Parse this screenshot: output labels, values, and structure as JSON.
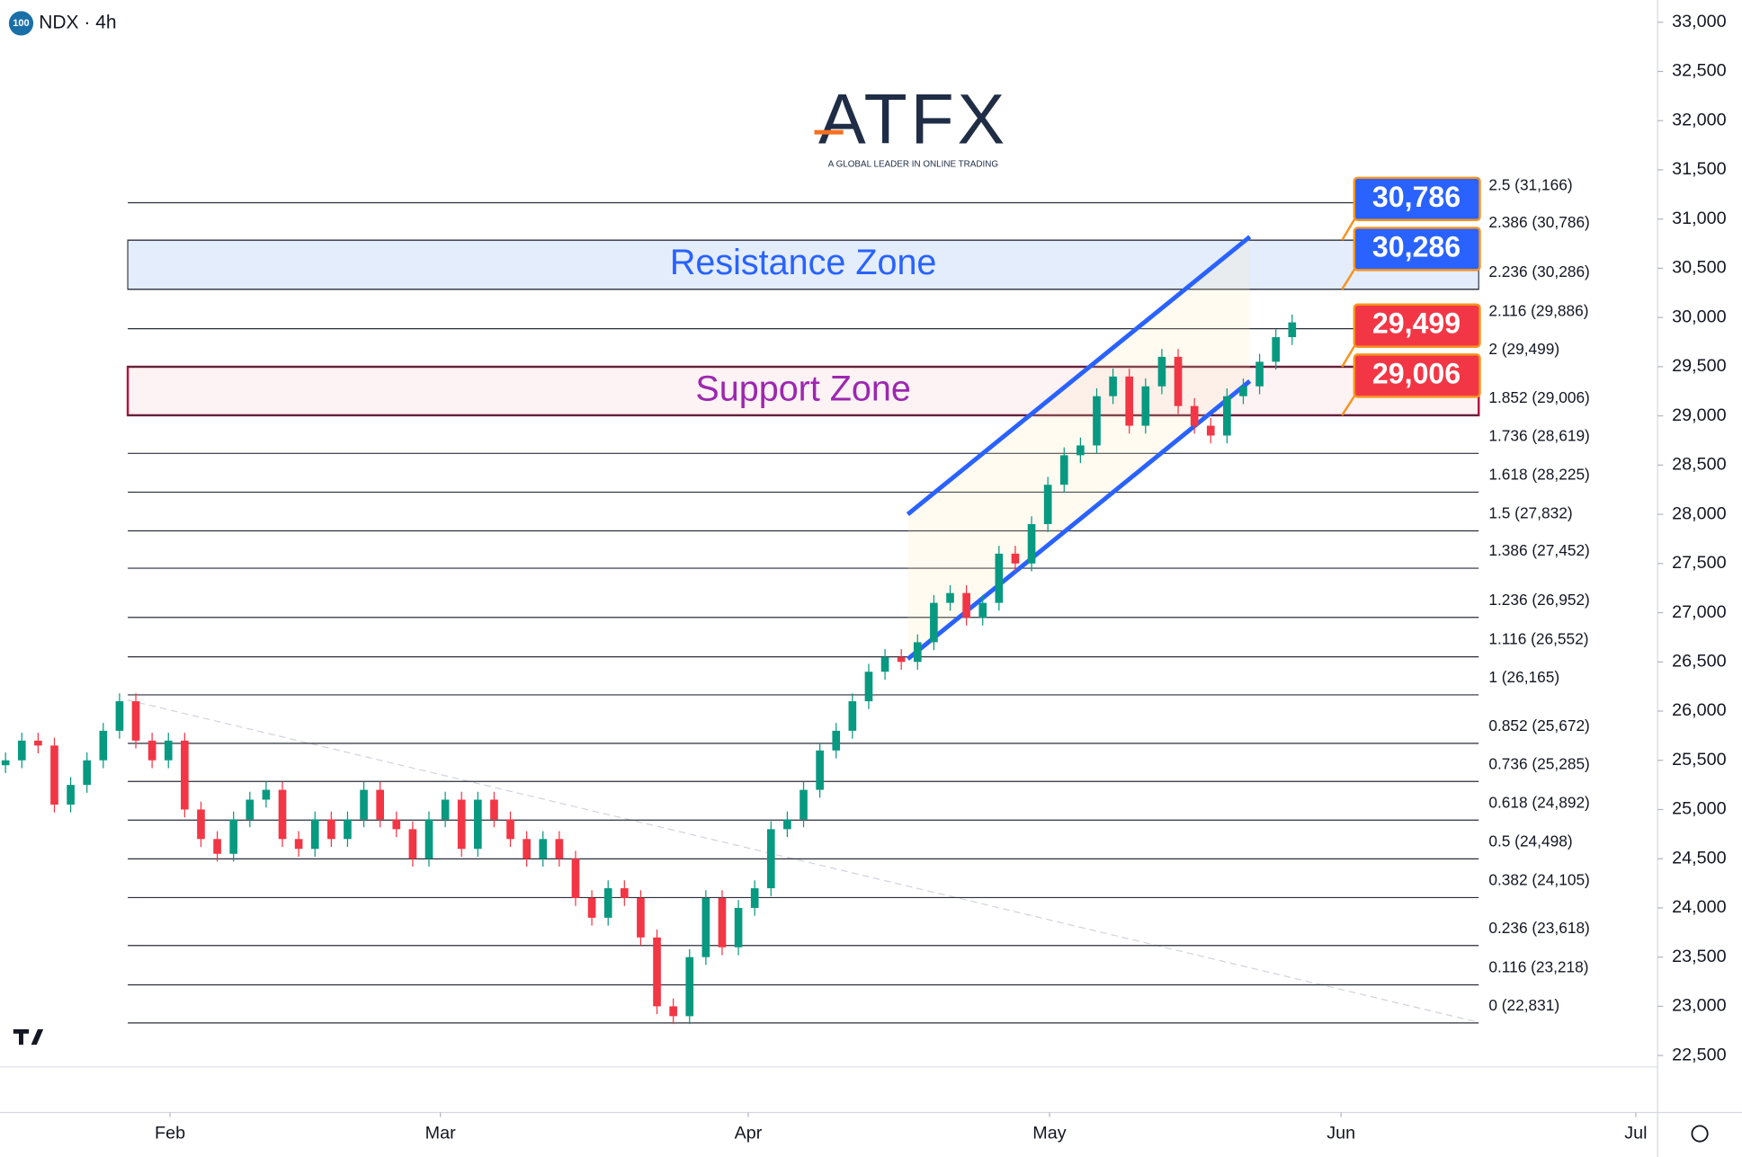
{
  "chart_data": {
    "type": "candlestick",
    "symbol": "NDX · 4h",
    "badge": "100",
    "logo": "ATFX",
    "tagline": "A GLOBAL LEADER IN ONLINE TRADING",
    "up_color": "#089981",
    "down_color": "#f23645",
    "candles": [
      [
        25450,
        25580,
        25370,
        25500
      ],
      [
        25500,
        25780,
        25420,
        25700
      ],
      [
        25700,
        25780,
        25570,
        25650
      ],
      [
        25650,
        25730,
        24970,
        25050
      ],
      [
        25050,
        25330,
        24970,
        25250
      ],
      [
        25250,
        25580,
        25170,
        25500
      ],
      [
        25500,
        25880,
        25420,
        25800
      ],
      [
        25800,
        26180,
        25720,
        26100
      ],
      [
        26100,
        26180,
        25620,
        25700
      ],
      [
        25700,
        25780,
        25420,
        25500
      ],
      [
        25500,
        25780,
        25420,
        25700
      ],
      [
        25700,
        25780,
        24920,
        25000
      ],
      [
        25000,
        25080,
        24620,
        24700
      ],
      [
        24700,
        24780,
        24470,
        24550
      ],
      [
        24550,
        24980,
        24470,
        24900
      ],
      [
        24900,
        25180,
        24820,
        25100
      ],
      [
        25100,
        25280,
        25020,
        25200
      ],
      [
        25200,
        25280,
        24620,
        24700
      ],
      [
        24700,
        24780,
        24520,
        24600
      ],
      [
        24600,
        24980,
        24520,
        24900
      ],
      [
        24900,
        24980,
        24620,
        24700
      ],
      [
        24700,
        24980,
        24620,
        24900
      ],
      [
        24900,
        25280,
        24820,
        25200
      ],
      [
        25200,
        25280,
        24820,
        24900
      ],
      [
        24900,
        24980,
        24720,
        24800
      ],
      [
        24800,
        24880,
        24420,
        24500
      ],
      [
        24500,
        24980,
        24420,
        24900
      ],
      [
        24900,
        25180,
        24820,
        25100
      ],
      [
        25100,
        25180,
        24520,
        24600
      ],
      [
        24600,
        25180,
        24520,
        25100
      ],
      [
        25100,
        25180,
        24820,
        24900
      ],
      [
        24900,
        24980,
        24620,
        24700
      ],
      [
        24700,
        24780,
        24420,
        24500
      ],
      [
        24500,
        24780,
        24420,
        24700
      ],
      [
        24700,
        24780,
        24420,
        24500
      ],
      [
        24500,
        24580,
        24020,
        24100
      ],
      [
        24100,
        24180,
        23820,
        23900
      ],
      [
        23900,
        24280,
        23820,
        24200
      ],
      [
        24200,
        24280,
        24020,
        24100
      ],
      [
        24100,
        24180,
        23620,
        23700
      ],
      [
        23700,
        23780,
        22920,
        23000
      ],
      [
        23000,
        23080,
        22820,
        22900
      ],
      [
        22900,
        23580,
        22820,
        23500
      ],
      [
        23500,
        24180,
        23420,
        24100
      ],
      [
        24100,
        24180,
        23520,
        23600
      ],
      [
        23600,
        24080,
        23520,
        24000
      ],
      [
        24000,
        24280,
        23920,
        24200
      ],
      [
        24200,
        24880,
        24120,
        24800
      ],
      [
        24800,
        24980,
        24720,
        24900
      ],
      [
        24900,
        25280,
        24820,
        25200
      ],
      [
        25200,
        25680,
        25120,
        25600
      ],
      [
        25600,
        25880,
        25520,
        25800
      ],
      [
        25800,
        26180,
        25720,
        26100
      ],
      [
        26100,
        26480,
        26020,
        26400
      ],
      [
        26400,
        26630,
        26320,
        26550
      ],
      [
        26550,
        26630,
        26420,
        26500
      ],
      [
        26500,
        26780,
        26420,
        26700
      ],
      [
        26700,
        27180,
        26620,
        27100
      ],
      [
        27100,
        27280,
        27020,
        27200
      ],
      [
        27200,
        27280,
        26870,
        26950
      ],
      [
        26950,
        27180,
        26870,
        27100
      ],
      [
        27100,
        27680,
        27020,
        27600
      ],
      [
        27600,
        27680,
        27420,
        27500
      ],
      [
        27500,
        27980,
        27420,
        27900
      ],
      [
        27900,
        28380,
        27820,
        28300
      ],
      [
        28300,
        28680,
        28220,
        28600
      ],
      [
        28600,
        28780,
        28520,
        28700
      ],
      [
        28700,
        29280,
        28620,
        29200
      ],
      [
        29200,
        29480,
        29120,
        29400
      ],
      [
        29400,
        29480,
        28820,
        28900
      ],
      [
        28900,
        29380,
        28820,
        29300
      ],
      [
        29300,
        29680,
        29220,
        29600
      ],
      [
        29600,
        29680,
        29020,
        29100
      ],
      [
        29100,
        29180,
        28820,
        28900
      ],
      [
        28900,
        28980,
        28720,
        28800
      ],
      [
        28800,
        29280,
        28720,
        29200
      ],
      [
        29200,
        29380,
        29120,
        29300
      ],
      [
        29300,
        29630,
        29220,
        29550
      ],
      [
        29550,
        29880,
        29470,
        29800
      ],
      [
        29800,
        30030,
        29720,
        29950
      ]
    ],
    "xlim": [
      -0.34,
      101.3
    ],
    "xticks": [
      {
        "value": 10.1,
        "label": "Feb"
      },
      {
        "value": 26.7,
        "label": "Mar"
      },
      {
        "value": 45.6,
        "label": "Apr"
      },
      {
        "value": 64.1,
        "label": "May"
      },
      {
        "value": 82,
        "label": "Jun"
      },
      {
        "value": 100.1,
        "label": "Jul"
      }
    ],
    "ylim": [
      22316,
      33226
    ],
    "yticks": [
      {
        "value": 22500,
        "label": "22,500"
      },
      {
        "value": 23000,
        "label": "23,000"
      },
      {
        "value": 23500,
        "label": "23,500"
      },
      {
        "value": 24000,
        "label": "24,000"
      },
      {
        "value": 24500,
        "label": "24,500"
      },
      {
        "value": 25000,
        "label": "25,000"
      },
      {
        "value": 25500,
        "label": "25,500"
      },
      {
        "value": 26000,
        "label": "26,000"
      },
      {
        "value": 26500,
        "label": "26,500"
      },
      {
        "value": 27000,
        "label": "27,000"
      },
      {
        "value": 27500,
        "label": "27,500"
      },
      {
        "value": 28000,
        "label": "28,000"
      },
      {
        "value": 28500,
        "label": "28,500"
      },
      {
        "value": 29000,
        "label": "29,000"
      },
      {
        "value": 29500,
        "label": "29,500"
      },
      {
        "value": 30000,
        "label": "30,000"
      },
      {
        "value": 30500,
        "label": "30,500"
      },
      {
        "value": 31000,
        "label": "31,000"
      },
      {
        "value": 31500,
        "label": "31,500"
      },
      {
        "value": 32000,
        "label": "32,000"
      },
      {
        "value": 32500,
        "label": "32,500"
      },
      {
        "value": 33000,
        "label": "33,000"
      }
    ],
    "fib_levels": [
      {
        "value": 31166,
        "label": "2.5 (31,166)"
      },
      {
        "value": 30786,
        "label": "2.386 (30,786)"
      },
      {
        "value": 30286,
        "label": "2.236 (30,286)"
      },
      {
        "value": 29886,
        "label": "2.116 (29,886)"
      },
      {
        "value": 29499,
        "label": "2 (29,499)"
      },
      {
        "value": 29006,
        "label": "1.852 (29,006)"
      },
      {
        "value": 28619,
        "label": "1.736 (28,619)"
      },
      {
        "value": 28225,
        "label": "1.618 (28,225)"
      },
      {
        "value": 27832,
        "label": "1.5 (27,832)"
      },
      {
        "value": 27452,
        "label": "1.386 (27,452)"
      },
      {
        "value": 26952,
        "label": "1.236 (26,952)"
      },
      {
        "value": 26552,
        "label": "1.116 (26,552)"
      },
      {
        "value": 26165,
        "label": "1 (26,165)"
      },
      {
        "value": 25672,
        "label": "0.852 (25,672)"
      },
      {
        "value": 25285,
        "label": "0.736 (25,285)"
      },
      {
        "value": 24892,
        "label": "0.618 (24,892)"
      },
      {
        "value": 24498,
        "label": "0.5 (24,498)"
      },
      {
        "value": 24105,
        "label": "0.382 (24,105)"
      },
      {
        "value": 23618,
        "label": "0.236 (23,618)"
      },
      {
        "value": 23218,
        "label": "0.116 (23,218)"
      },
      {
        "value": 22831,
        "label": "0 (22,831)"
      }
    ],
    "zones": [
      {
        "label": "Resistance Zone",
        "from": 30286,
        "to": 30786,
        "color": "#2962ff",
        "fill": "#e3edfc",
        "border": "#3a3f4a"
      },
      {
        "label": "Support Zone",
        "from": 29006,
        "to": 29499,
        "color": "#9c27b0",
        "fill": "#fdf2f4",
        "border": "#b2163e"
      }
    ],
    "price_labels": [
      {
        "value": 30786,
        "label": "30,786",
        "color": "#2962ff"
      },
      {
        "value": 30286,
        "label": "30,286",
        "color": "#2962ff"
      },
      {
        "value": 29499,
        "label": "29,499",
        "color": "#f23645"
      },
      {
        "value": 29006,
        "label": "29,006",
        "color": "#f23645"
      }
    ],
    "channel": {
      "color": "#2962ff",
      "upper": [
        [
          55.4,
          28000
        ],
        [
          76.4,
          30820
        ]
      ],
      "lower": [
        [
          55.4,
          26530
        ],
        [
          76.4,
          29353
        ]
      ]
    },
    "trendline": [
      [
        7.5,
        26113
      ],
      [
        90.4,
        22840
      ]
    ]
  }
}
